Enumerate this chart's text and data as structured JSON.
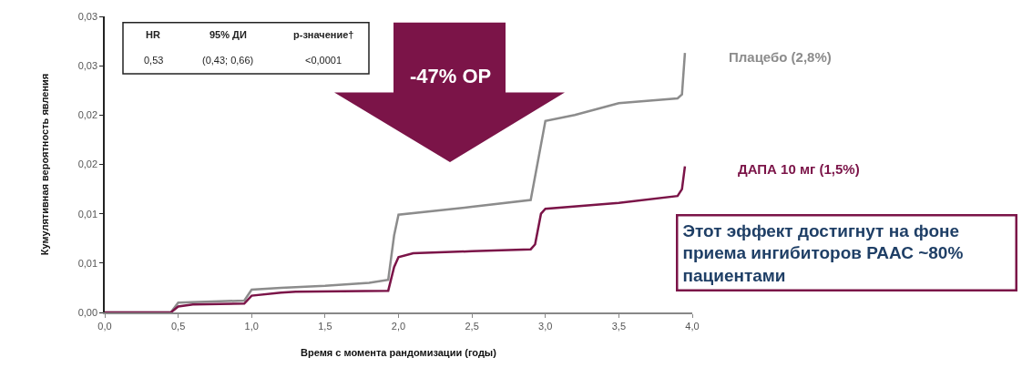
{
  "chart_data": {
    "type": "line",
    "xlabel": "Время с момента рандомизации (годы)",
    "ylabel": "Кумулятивная вероятность явления",
    "xlim": [
      0,
      4
    ],
    "xticks": [
      {
        "value": 0,
        "label": "0,0"
      },
      {
        "value": 0.5,
        "label": "0,5"
      },
      {
        "value": 1,
        "label": "1,0"
      },
      {
        "value": 1.5,
        "label": "1,5"
      },
      {
        "value": 2,
        "label": "2,0"
      },
      {
        "value": 2.5,
        "label": "2,5"
      },
      {
        "value": 3,
        "label": "3,0"
      },
      {
        "value": 3.5,
        "label": "3,5"
      },
      {
        "value": 4,
        "label": "4,0"
      }
    ],
    "ylim": [
      0,
      0.03
    ],
    "yticks": [
      {
        "value": 0,
        "label": "0,00"
      },
      {
        "value": 0.005,
        "label": "0,01"
      },
      {
        "value": 0.01,
        "label": "0,01"
      },
      {
        "value": 0.015,
        "label": "0,02"
      },
      {
        "value": 0.02,
        "label": "0,02"
      },
      {
        "value": 0.025,
        "label": "0,03"
      },
      {
        "value": 0.03,
        "label": "0,03"
      }
    ],
    "series": [
      {
        "name": "Плацебо (2,8%)",
        "color": "#8c8c8c",
        "x": [
          0,
          0.45,
          0.5,
          0.95,
          1.0,
          1.2,
          1.5,
          1.8,
          1.93,
          1.97,
          2.0,
          2.5,
          2.9,
          2.95,
          3.0,
          3.2,
          3.5,
          3.9,
          3.93,
          3.95
        ],
        "values": [
          0,
          0,
          0.001,
          0.0012,
          0.0023,
          0.0025,
          0.0027,
          0.003,
          0.0033,
          0.0078,
          0.0099,
          0.0107,
          0.0114,
          0.0154,
          0.0194,
          0.02,
          0.0212,
          0.0217,
          0.0221,
          0.0263
        ]
      },
      {
        "name": "ДАПА 10 мг (1,5%)",
        "color": "#7b1448",
        "x": [
          0,
          0.45,
          0.5,
          0.6,
          0.95,
          1.0,
          1.2,
          1.3,
          1.93,
          1.97,
          2.0,
          2.1,
          2.5,
          2.9,
          2.93,
          2.97,
          3.0,
          3.5,
          3.9,
          3.93,
          3.95
        ],
        "values": [
          0,
          0,
          0.0006,
          0.0008,
          0.0009,
          0.0017,
          0.002,
          0.0021,
          0.0022,
          0.0046,
          0.0056,
          0.006,
          0.0062,
          0.0064,
          0.0069,
          0.01,
          0.0105,
          0.0111,
          0.0118,
          0.0125,
          0.0148
        ]
      }
    ],
    "annotations": [
      "HR",
      "95% ДИ",
      "p-значение†",
      "0,53",
      "(0,43; 0,66)",
      "<0,0001",
      "-47% ОР",
      "Этот эффект достигнут на фоне\nприема ингибиторов РААС ~80%\nпациентами"
    ],
    "legend": false,
    "marker": "none",
    "line_style": "solid"
  }
}
